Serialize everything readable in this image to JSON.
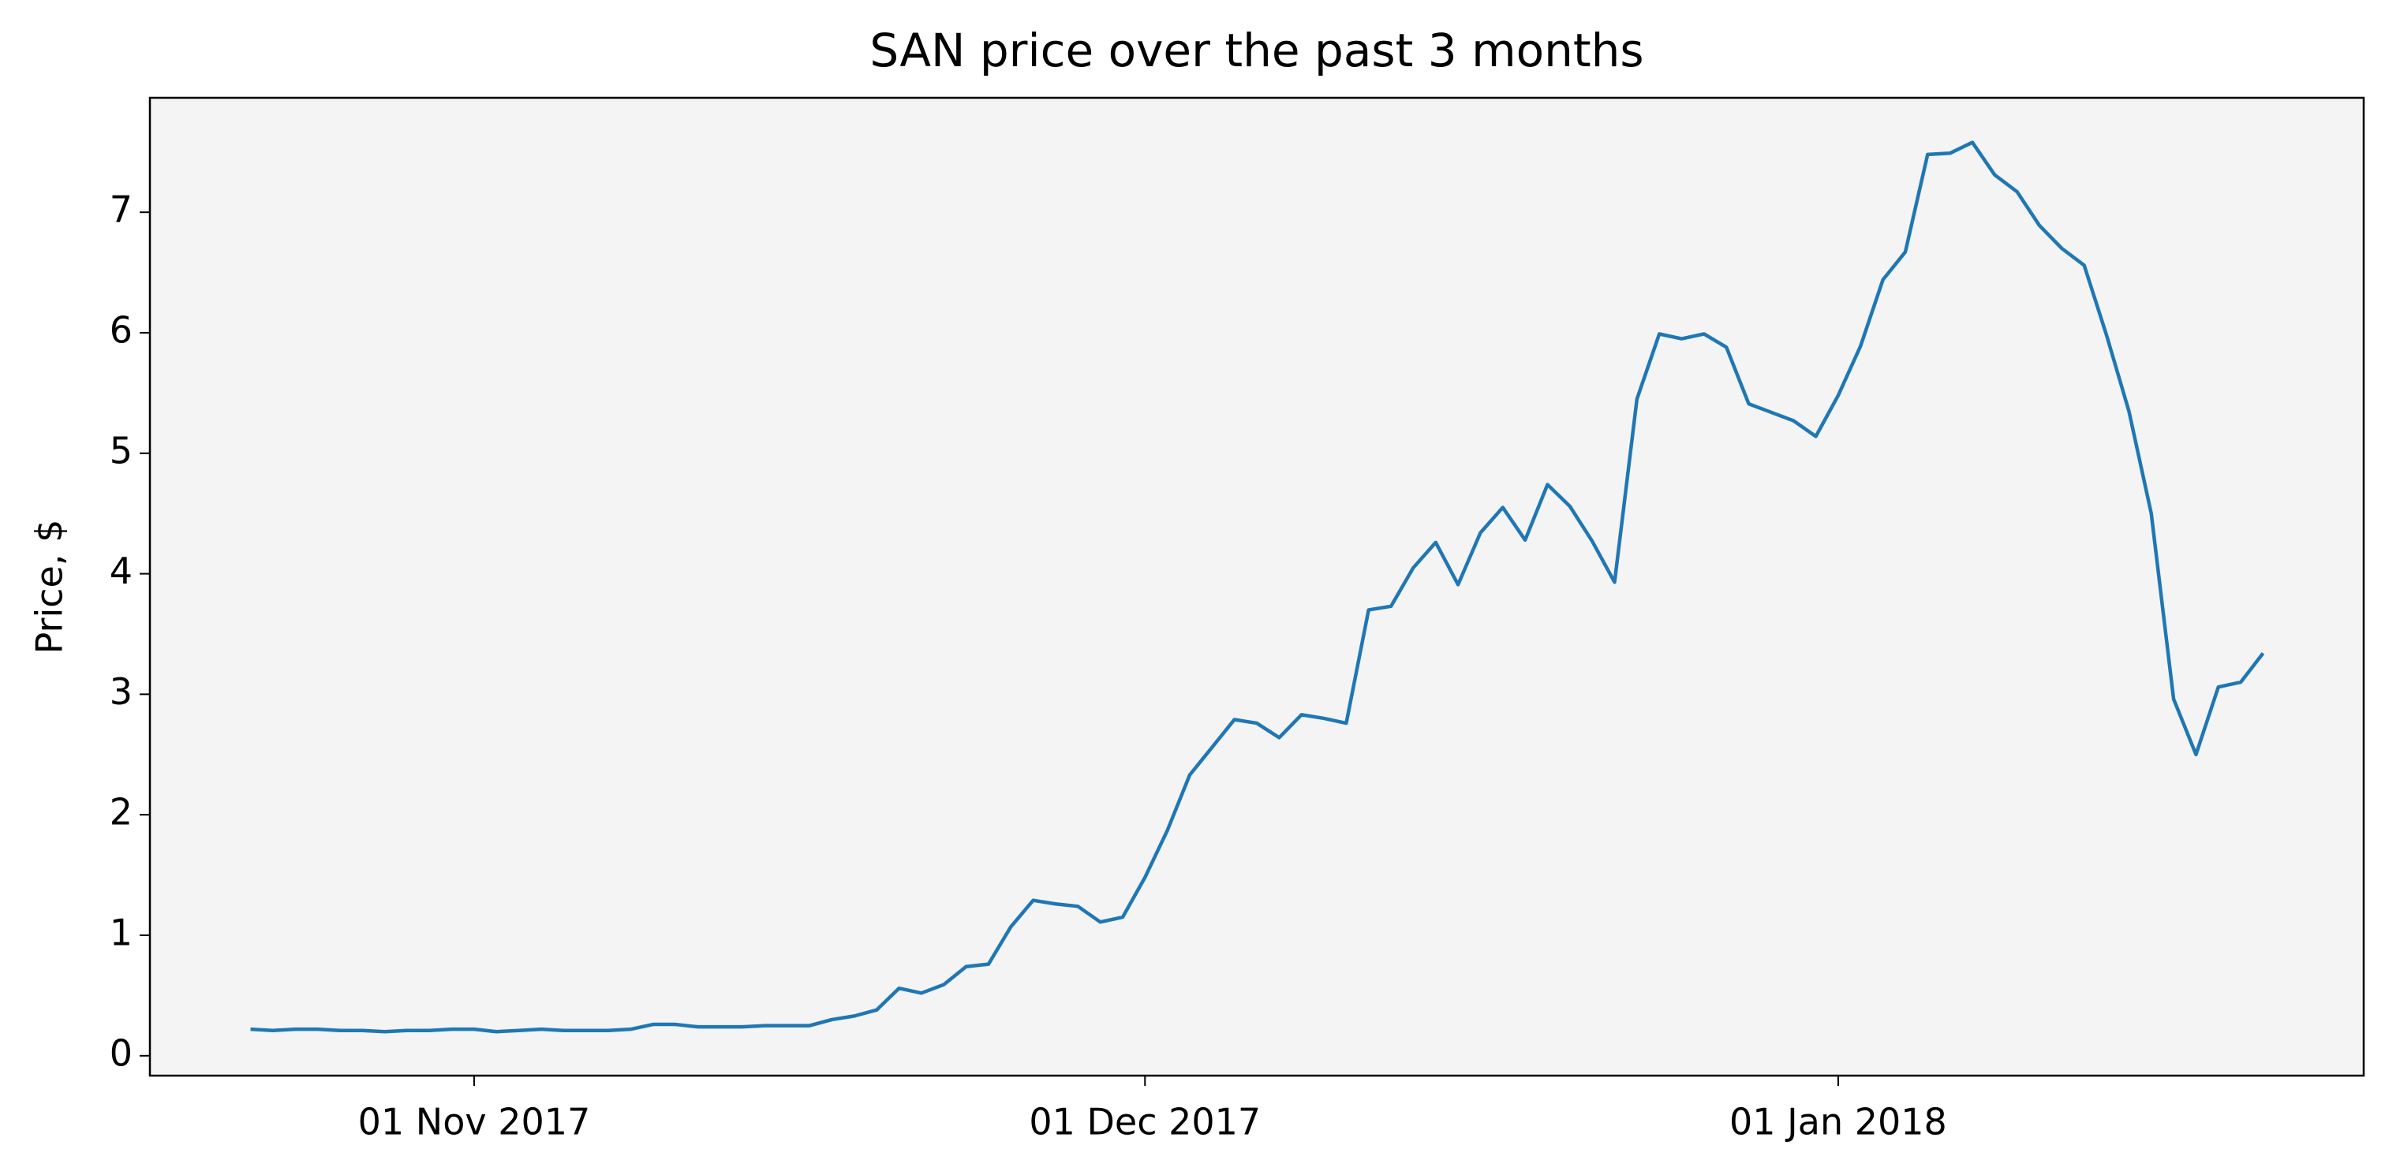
{
  "chart_data": {
    "type": "line",
    "title": "SAN price over the past 3 months",
    "y_label": "Price, $",
    "x": [
      "2017-10-22",
      "2017-10-23",
      "2017-10-24",
      "2017-10-25",
      "2017-10-26",
      "2017-10-27",
      "2017-10-28",
      "2017-10-29",
      "2017-10-30",
      "2017-10-31",
      "2017-11-01",
      "2017-11-02",
      "2017-11-03",
      "2017-11-04",
      "2017-11-05",
      "2017-11-06",
      "2017-11-07",
      "2017-11-08",
      "2017-11-09",
      "2017-11-10",
      "2017-11-11",
      "2017-11-12",
      "2017-11-13",
      "2017-11-14",
      "2017-11-15",
      "2017-11-16",
      "2017-11-17",
      "2017-11-18",
      "2017-11-19",
      "2017-11-20",
      "2017-11-21",
      "2017-11-22",
      "2017-11-23",
      "2017-11-24",
      "2017-11-25",
      "2017-11-26",
      "2017-11-27",
      "2017-11-28",
      "2017-11-29",
      "2017-11-30",
      "2017-12-01",
      "2017-12-02",
      "2017-12-03",
      "2017-12-04",
      "2017-12-05",
      "2017-12-06",
      "2017-12-07",
      "2017-12-08",
      "2017-12-09",
      "2017-12-10",
      "2017-12-11",
      "2017-12-12",
      "2017-12-13",
      "2017-12-14",
      "2017-12-15",
      "2017-12-16",
      "2017-12-17",
      "2017-12-18",
      "2017-12-19",
      "2017-12-20",
      "2017-12-21",
      "2017-12-22",
      "2017-12-23",
      "2017-12-24",
      "2017-12-25",
      "2017-12-26",
      "2017-12-27",
      "2017-12-28",
      "2017-12-29",
      "2017-12-30",
      "2017-12-31",
      "2018-01-01",
      "2018-01-02",
      "2018-01-03",
      "2018-01-04",
      "2018-01-05",
      "2018-01-06",
      "2018-01-07",
      "2018-01-08",
      "2018-01-09",
      "2018-01-10",
      "2018-01-11",
      "2018-01-12",
      "2018-01-13",
      "2018-01-14",
      "2018-01-15",
      "2018-01-16",
      "2018-01-17",
      "2018-01-18",
      "2018-01-19",
      "2018-01-20"
    ],
    "series": [
      {
        "name": "SAN",
        "color": "#1f77b4",
        "values": [
          0.22,
          0.21,
          0.22,
          0.22,
          0.21,
          0.21,
          0.2,
          0.21,
          0.21,
          0.22,
          0.22,
          0.2,
          0.21,
          0.22,
          0.21,
          0.21,
          0.21,
          0.22,
          0.26,
          0.26,
          0.24,
          0.24,
          0.24,
          0.25,
          0.25,
          0.25,
          0.3,
          0.33,
          0.38,
          0.56,
          0.52,
          0.59,
          0.74,
          0.76,
          1.07,
          1.29,
          1.26,
          1.24,
          1.11,
          1.15,
          1.48,
          1.87,
          2.33,
          2.56,
          2.79,
          2.76,
          2.64,
          2.83,
          2.8,
          2.76,
          3.7,
          3.73,
          4.05,
          4.26,
          3.91,
          4.34,
          4.55,
          4.28,
          4.74,
          4.56,
          4.27,
          3.93,
          5.45,
          5.99,
          5.95,
          5.99,
          5.88,
          5.41,
          5.34,
          5.27,
          5.14,
          5.48,
          5.89,
          6.44,
          6.67,
          7.48,
          7.49,
          7.58,
          7.31,
          7.17,
          6.89,
          6.7,
          6.56,
          5.98,
          5.35,
          4.5,
          2.96,
          2.5,
          3.06,
          3.1,
          3.34
        ]
      }
    ],
    "xlim": [
      "2017-10-17T12:00",
      "2018-01-24T12:00"
    ],
    "xticks": [
      {
        "value": "2017-11-01",
        "label": "01 Nov 2017"
      },
      {
        "value": "2017-12-01",
        "label": "01 Dec 2017"
      },
      {
        "value": "2018-01-01",
        "label": "01 Jan 2018"
      }
    ],
    "ylim": [
      -0.165,
      7.95
    ],
    "yticks": [
      0,
      1,
      2,
      3,
      4,
      5,
      6,
      7
    ],
    "grid": false,
    "background": "#f4f4f4"
  }
}
